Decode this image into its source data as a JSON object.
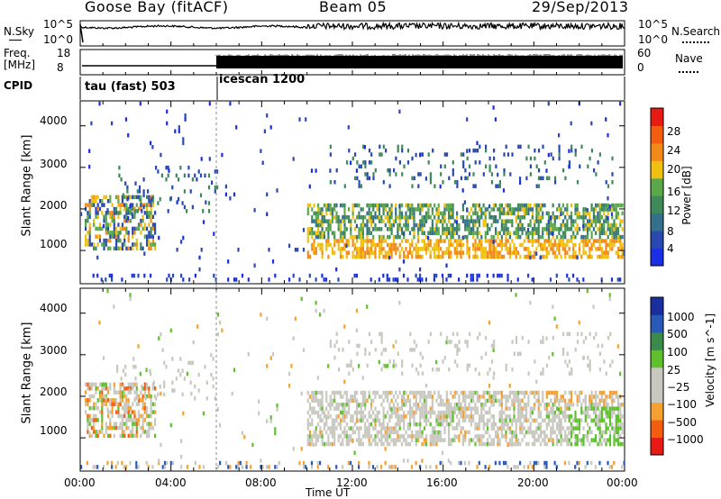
{
  "header": {
    "station": "Goose Bay (fitACF)",
    "beam": "Beam 05",
    "date": "29/Sep/2013"
  },
  "panels": {
    "nsky": {
      "label": "N.Sky",
      "left_ticks": [
        "10^5",
        "10^0"
      ],
      "right_ticks": [
        "10^5",
        "10^0"
      ],
      "right_label": "N.Search"
    },
    "freq": {
      "label_line1": "Freq.",
      "label_line2": "[MHz]",
      "left_ticks": [
        "18",
        "8"
      ],
      "right_ticks": [
        "60",
        "0"
      ],
      "right_label": "Nave"
    },
    "cpid": {
      "label": "CPID",
      "segments": [
        "tau (fast) 503",
        "icescan 1200"
      ]
    }
  },
  "colors": {
    "power": [
      "#1a2ee6",
      "#2a49b0",
      "#34708c",
      "#3f8a58",
      "#5aa84a",
      "#f0c010",
      "#f38a18",
      "#f45c10",
      "#e81a14"
    ],
    "velocity": [
      "#e81a14",
      "#f45c10",
      "#f5a030",
      "#c8c8c0",
      "#c8c8c0",
      "#5dc02c",
      "#3a8a4a",
      "#2a5ab8",
      "#1a2ea0"
    ]
  },
  "chart_data": [
    {
      "type": "heatmap",
      "title": "Power",
      "ylabel": "Slant Range [km]",
      "xlabel": "Time UT",
      "ylim": [
        200,
        4600
      ],
      "yticks": [
        "4000",
        "3000",
        "2000",
        "1000"
      ],
      "xticks": [
        "00:00",
        "04:00",
        "08:00",
        "12:00",
        "16:00",
        "20:00",
        "00:00"
      ],
      "colorbar": {
        "label": "Power [dB]",
        "ticks": [
          "28",
          "24",
          "20",
          "16",
          "12",
          "8",
          "4"
        ]
      },
      "regions": [
        {
          "t": [
            0.2,
            3.2
          ],
          "range": [
            1000,
            2300
          ],
          "level": "mixed"
        },
        {
          "t": [
            2.0,
            6.0
          ],
          "range": [
            1900,
            3000
          ],
          "level": "low"
        },
        {
          "t": [
            10.0,
            23.9
          ],
          "range": [
            800,
            2100
          ],
          "level": "high"
        },
        {
          "t": [
            11.0,
            23.5
          ],
          "range": [
            2600,
            3500
          ],
          "level": "low"
        }
      ]
    },
    {
      "type": "heatmap",
      "title": "Velocity",
      "ylabel": "Slant Range [km]",
      "xlabel": "Time UT",
      "ylim": [
        200,
        4600
      ],
      "yticks": [
        "4000",
        "3000",
        "2000",
        "1000"
      ],
      "xticks": [
        "00:00",
        "04:00",
        "08:00",
        "12:00",
        "16:00",
        "20:00",
        "00:00"
      ],
      "colorbar": {
        "label": "Velocity [m s^-1]",
        "ticks": [
          "1000",
          "500",
          "100",
          "25",
          "−25",
          "−100",
          "−500",
          "−1000"
        ]
      },
      "regions": [
        {
          "t": [
            0.2,
            3.2
          ],
          "range": [
            1000,
            2300
          ],
          "level": "mixed"
        },
        {
          "t": [
            10.0,
            23.9
          ],
          "range": [
            800,
            2100
          ],
          "level": "near-zero"
        },
        {
          "t": [
            21.5,
            23.9
          ],
          "range": [
            800,
            1700
          ],
          "level": "positive"
        }
      ]
    }
  ],
  "xaxis_label": "Time UT"
}
